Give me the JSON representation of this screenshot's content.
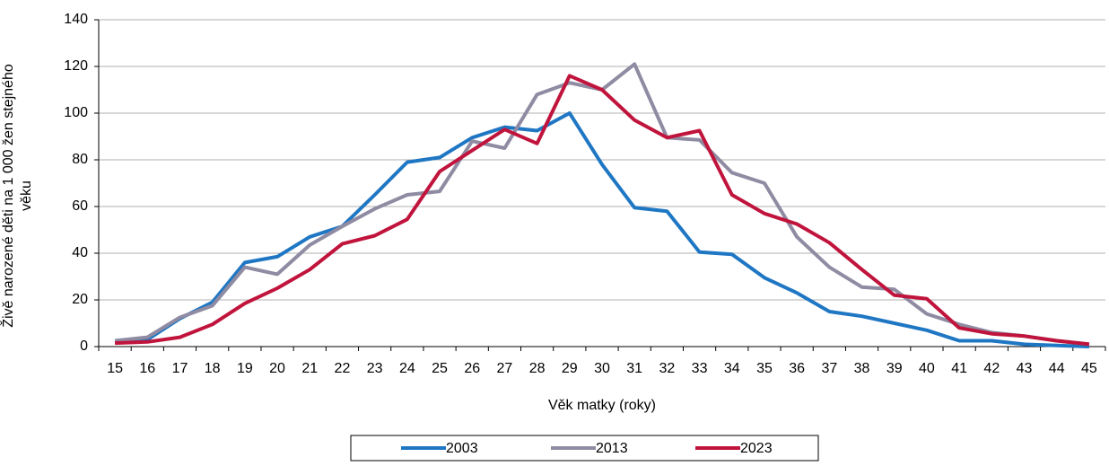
{
  "chart_data": {
    "type": "line",
    "xlabel": "Věk matky (roky)",
    "ylabel": "Živě narozené děti na 1 000 žen stejného věku",
    "categories": [
      "15",
      "16",
      "17",
      "18",
      "19",
      "20",
      "21",
      "22",
      "23",
      "24",
      "25",
      "26",
      "27",
      "28",
      "29",
      "30",
      "31",
      "32",
      "33",
      "34",
      "35",
      "36",
      "37",
      "38",
      "39",
      "40",
      "41",
      "42",
      "43",
      "44",
      "45"
    ],
    "ylim": [
      0,
      140
    ],
    "yticks": [
      0,
      20,
      40,
      60,
      80,
      100,
      120,
      140
    ],
    "grid": true,
    "legend": "bottom",
    "series": [
      {
        "name": "2003",
        "color": "#1f77c4",
        "values": [
          2,
          3,
          12,
          19,
          36,
          38.5,
          47,
          51.5,
          65,
          79,
          81,
          89.5,
          94,
          92.5,
          100,
          78,
          59.5,
          58,
          40.5,
          39.5,
          29.5,
          23,
          15,
          13,
          10,
          7,
          2.5,
          2.5,
          1,
          0.5,
          0
        ]
      },
      {
        "name": "2013",
        "color": "#8f8ba2",
        "values": [
          2.5,
          4,
          12.5,
          17.5,
          34,
          31,
          43.5,
          51.5,
          59,
          65,
          66.5,
          88,
          85,
          108,
          113,
          110,
          121,
          89.5,
          88.5,
          74.5,
          70,
          47,
          34,
          25.5,
          24.5,
          14,
          9.5,
          6,
          4.5,
          2.5,
          1
        ]
      },
      {
        "name": "2023",
        "color": "#c0143c",
        "values": [
          1.5,
          2,
          4,
          9.5,
          18.5,
          25,
          33,
          44,
          47.5,
          54.5,
          75,
          84,
          93,
          87,
          116,
          110,
          97,
          89.5,
          92.5,
          65,
          57,
          52.5,
          44.5,
          33,
          22,
          20.5,
          8,
          5.5,
          4.5,
          2.5,
          1
        ]
      }
    ]
  }
}
